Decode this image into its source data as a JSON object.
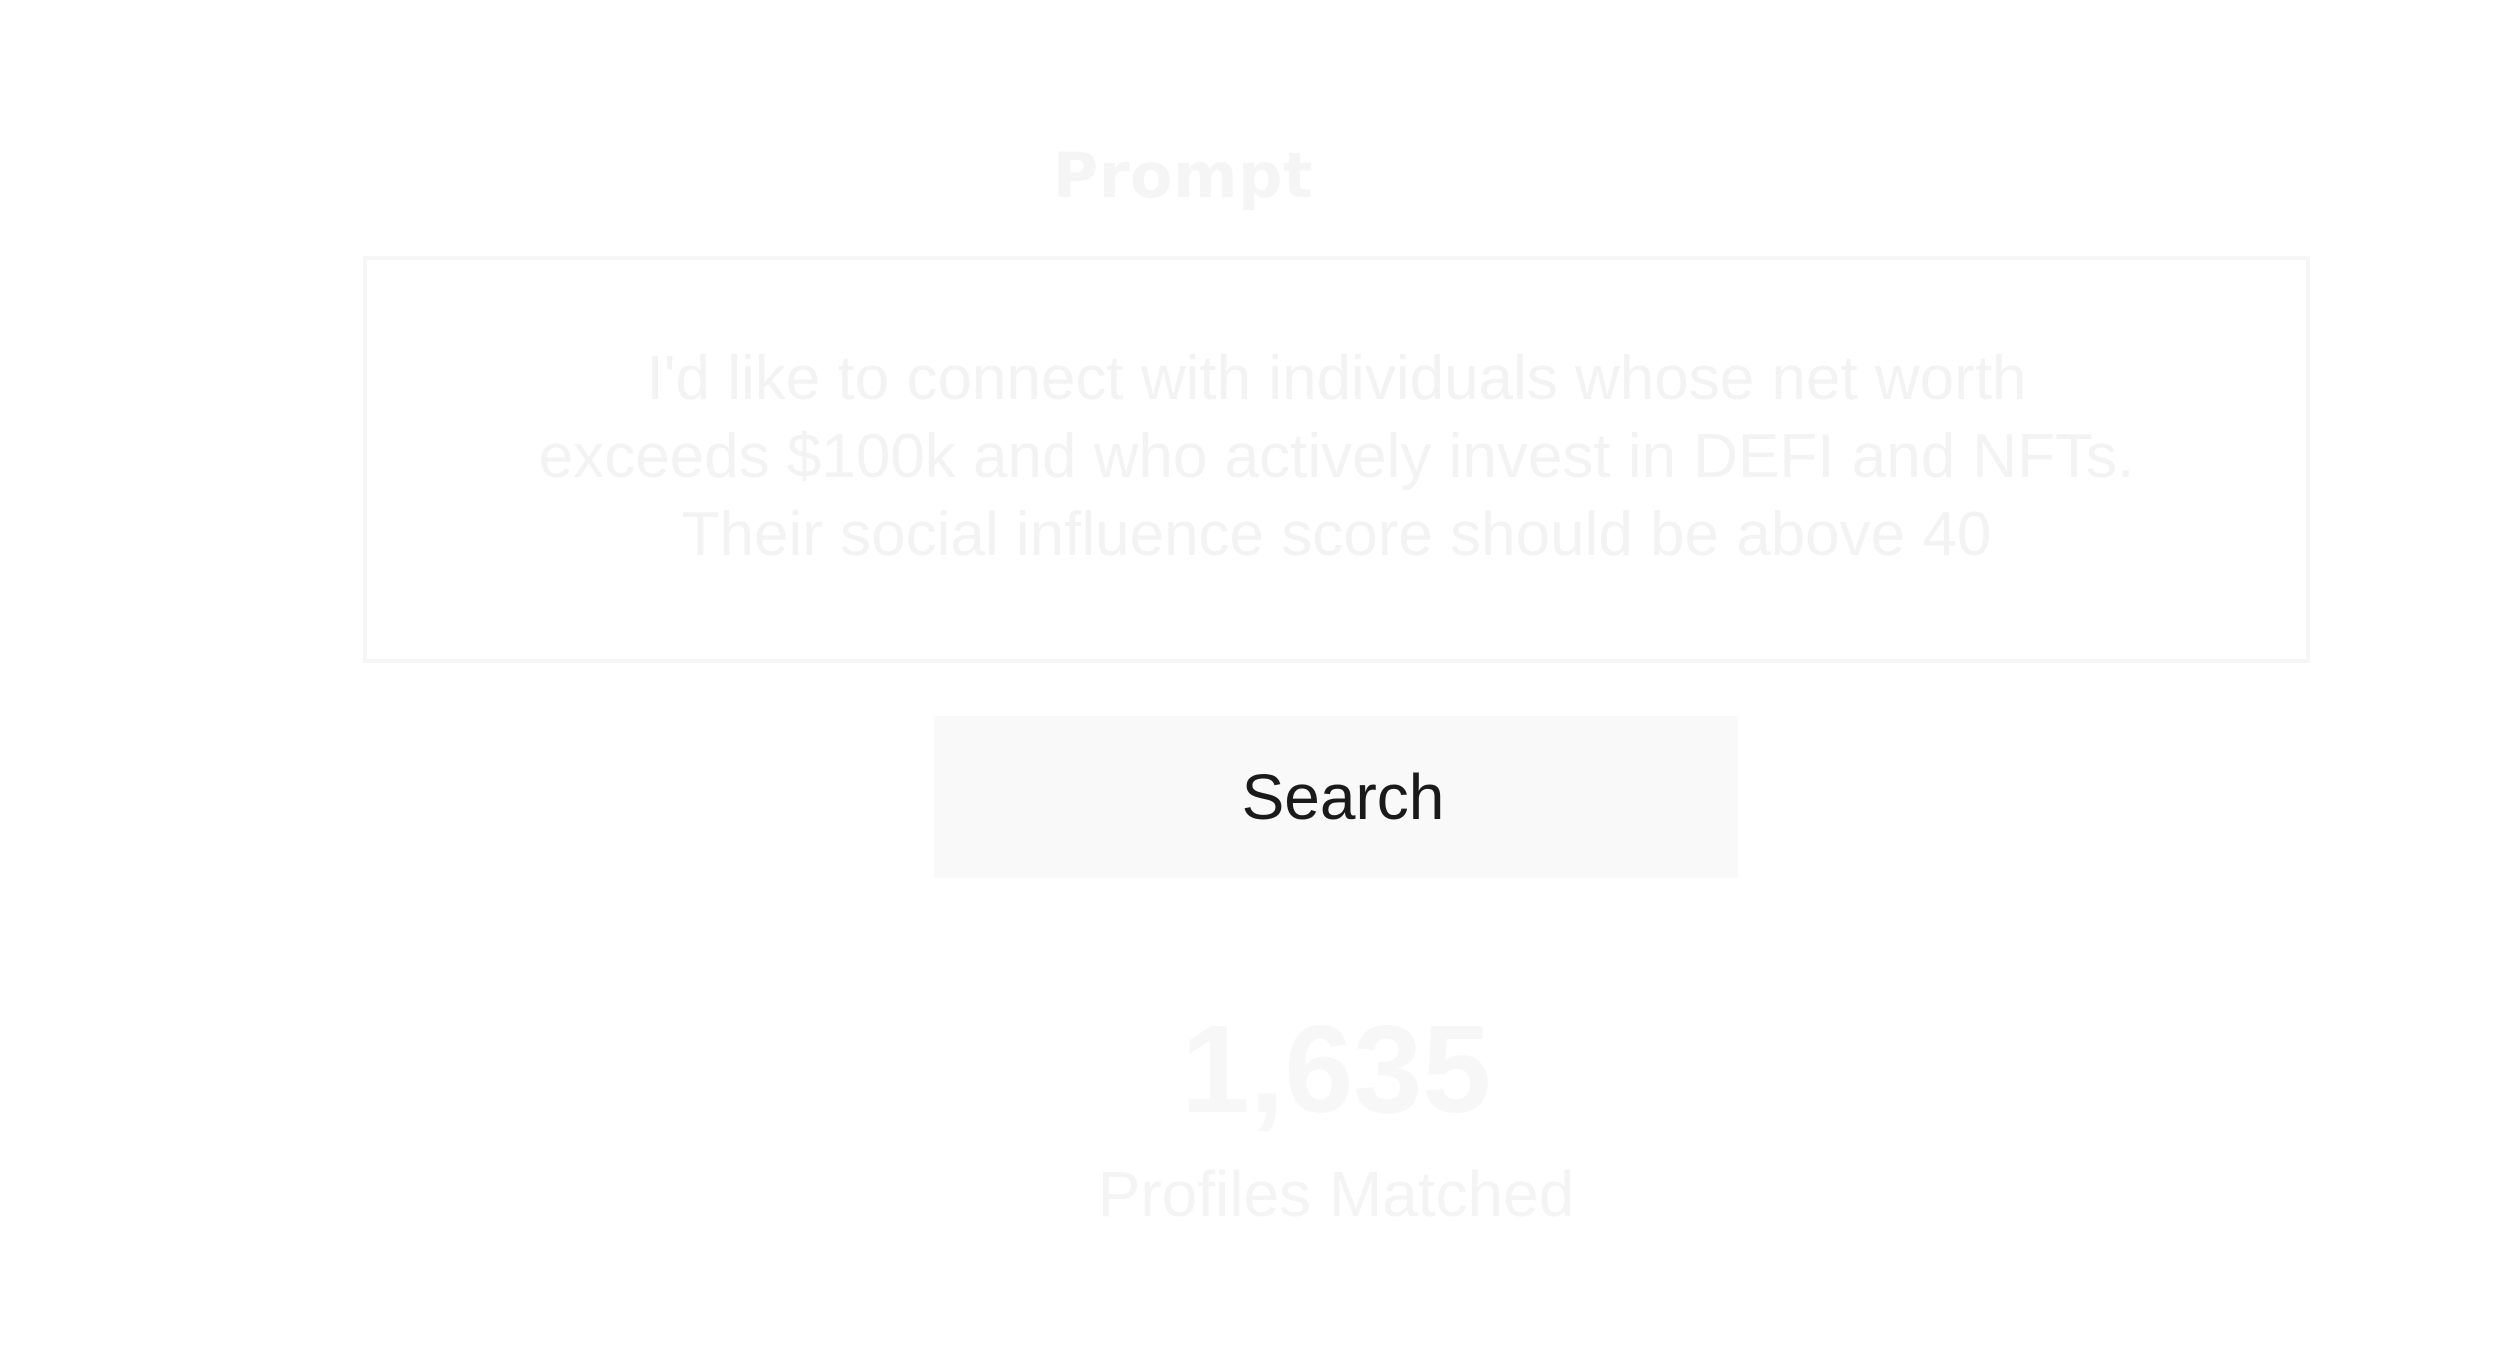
{
  "prompt": {
    "heading": "Prompt",
    "text": "I'd like to connect with individuals whose net worth exceeds $100k and who actively invest in DEFI and NFTs. Their social influence score should be above 40"
  },
  "search": {
    "label": "Search"
  },
  "results": {
    "count": "1,635",
    "label": "Profiles Matched"
  },
  "colors": {
    "background": "#ffffff",
    "button_bg": "#f9f9f9",
    "button_text": "#1a1a1a",
    "faded_text": "#f4f4f4"
  }
}
